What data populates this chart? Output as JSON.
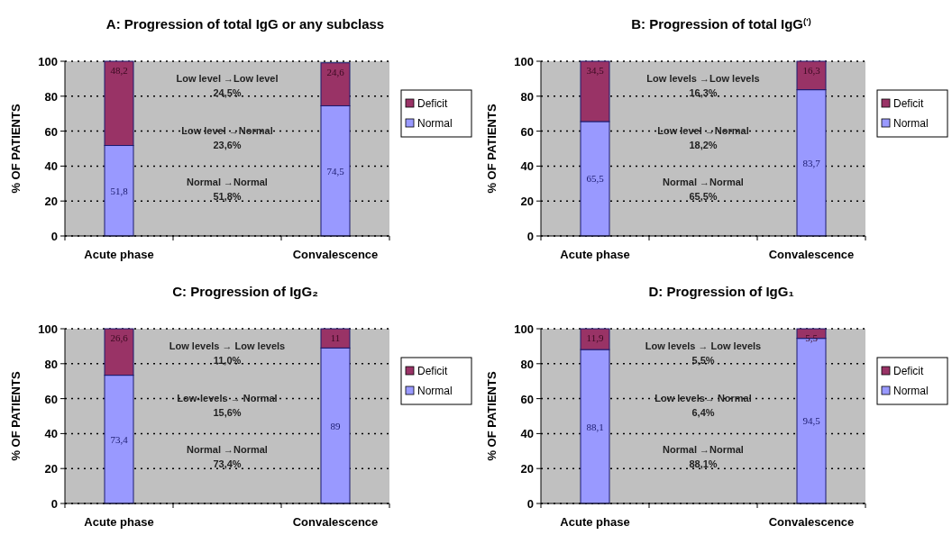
{
  "chart_data": [
    {
      "type": "bar",
      "title": "A: Progression of total IgG or any subclass",
      "ylabel": "% OF PATIENTS",
      "categories": [
        "Acute phase",
        "Convalescence"
      ],
      "stacked": true,
      "ylim": [
        0,
        100
      ],
      "yticks": [
        0,
        20,
        40,
        60,
        80,
        100
      ],
      "grid": "y",
      "line_style": "dotted",
      "legend": "right",
      "series": [
        {
          "name": "Normal",
          "color": "#9999ff",
          "values": [
            51.8,
            74.5
          ],
          "value_labels": [
            "51,8",
            "74,5"
          ]
        },
        {
          "name": "Deficit",
          "color": "#993366",
          "values": [
            48.2,
            24.6
          ],
          "value_labels": [
            "48,2",
            "24,6"
          ]
        }
      ],
      "annotations": [
        "Low level →Low level\n24,5%",
        "Low level →Normal\n23,6%",
        "Normal →Normal\n51,8%"
      ]
    },
    {
      "type": "bar",
      "title": "B: Progression of total IgG$^{(')}$",
      "ylabel": "% OF PATIENTS",
      "categories": [
        "Acute phase",
        "Convalescence"
      ],
      "stacked": true,
      "ylim": [
        0,
        100
      ],
      "yticks": [
        0,
        20,
        40,
        60,
        80,
        100
      ],
      "grid": "y",
      "line_style": "dotted",
      "legend": "right",
      "series": [
        {
          "name": "Normal",
          "color": "#9999ff",
          "values": [
            65.5,
            83.7
          ],
          "value_labels": [
            "65,5",
            "83,7"
          ]
        },
        {
          "name": "Deficit",
          "color": "#993366",
          "values": [
            34.5,
            16.3
          ],
          "value_labels": [
            "34,5",
            "16,3"
          ]
        }
      ],
      "annotations": [
        "Low levels →Low levels\n16,3%",
        "Low level →Normal\n18,2%",
        "Normal →Normal\n65,5%"
      ]
    },
    {
      "type": "bar",
      "title": "C: Progression of IgG₂",
      "ylabel": "% OF PATIENTS",
      "categories": [
        "Acute phase",
        "Convalescence"
      ],
      "stacked": true,
      "ylim": [
        0,
        100
      ],
      "yticks": [
        0,
        20,
        40,
        60,
        80,
        100
      ],
      "grid": "y",
      "line_style": "dotted",
      "legend": "right",
      "series": [
        {
          "name": "Normal",
          "color": "#9999ff",
          "values": [
            73.4,
            89
          ],
          "value_labels": [
            "73,4",
            "89"
          ]
        },
        {
          "name": "Deficit",
          "color": "#993366",
          "values": [
            26.6,
            11
          ],
          "value_labels": [
            "26,6",
            "11"
          ]
        }
      ],
      "annotations": [
        "Low levels → Low levels\n11,0%",
        "Low-levels → Normal\n15,6%",
        "Normal →Normal\n73,4%"
      ]
    },
    {
      "type": "bar",
      "title": "D: Progression of IgG₁",
      "ylabel": "% OF PATIENTS",
      "categories": [
        "Acute phase",
        "Convalescence"
      ],
      "stacked": true,
      "ylim": [
        0,
        100
      ],
      "yticks": [
        0,
        20,
        40,
        60,
        80,
        100
      ],
      "grid": "y",
      "line_style": "dotted",
      "legend": "right",
      "series": [
        {
          "name": "Normal",
          "color": "#9999ff",
          "values": [
            88.1,
            94.5
          ],
          "value_labels": [
            "88,1",
            "94,5"
          ]
        },
        {
          "name": "Deficit",
          "color": "#993366",
          "values": [
            11.9,
            5.5
          ],
          "value_labels": [
            "11,9",
            "5,5"
          ]
        }
      ],
      "annotations": [
        "Low levels → Low levels\n5,5%",
        "Low levels→ Normal\n6,4%",
        "Normal →Normal\n88,1%"
      ]
    }
  ]
}
